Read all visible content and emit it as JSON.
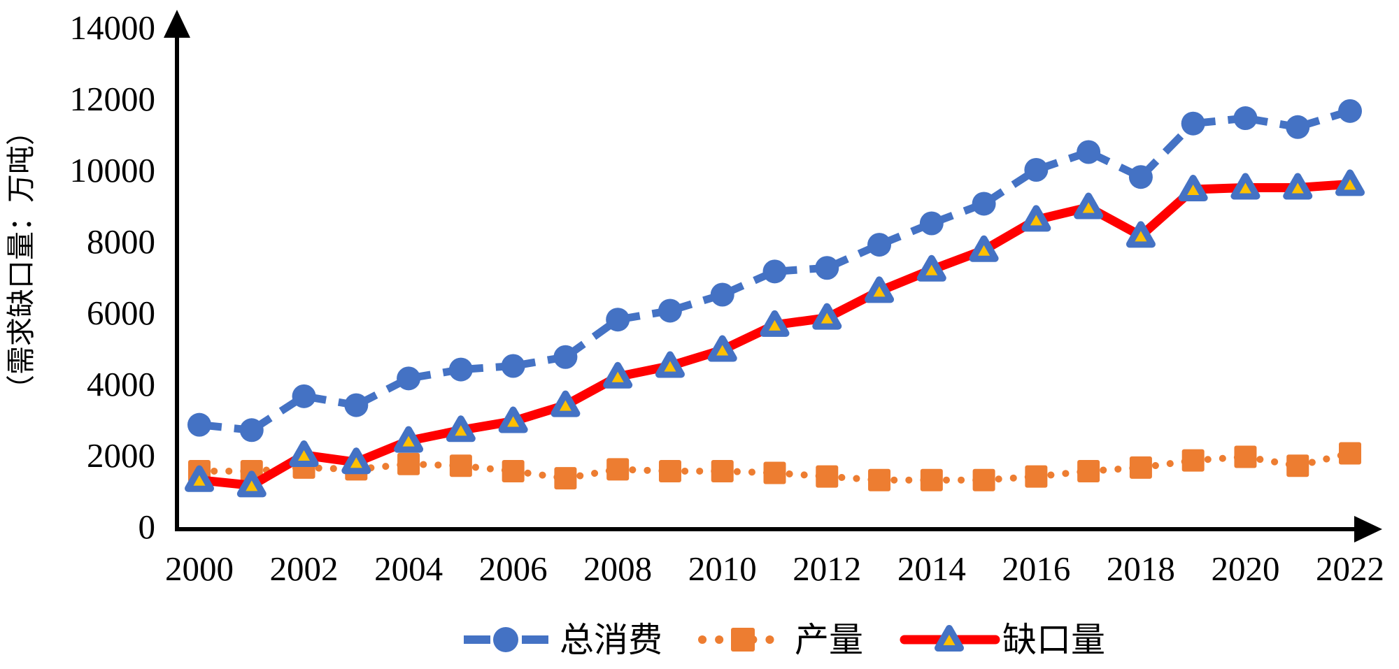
{
  "chart_data": {
    "type": "line",
    "title": "",
    "ylabel": "（需求缺口量：万吨）",
    "xlabel": "",
    "ylim": [
      0,
      14000
    ],
    "y_ticks": [
      0,
      2000,
      4000,
      6000,
      8000,
      10000,
      12000,
      14000
    ],
    "x": [
      2000,
      2001,
      2002,
      2003,
      2004,
      2005,
      2006,
      2007,
      2008,
      2009,
      2010,
      2011,
      2012,
      2013,
      2014,
      2015,
      2016,
      2017,
      2018,
      2019,
      2020,
      2021,
      2022
    ],
    "x_tick_labels": [
      "2000",
      "2002",
      "2004",
      "2006",
      "2008",
      "2010",
      "2012",
      "2014",
      "2016",
      "2018",
      "2020",
      "2022"
    ],
    "grid": false,
    "legend_position": "bottom-center",
    "axis_arrows": true,
    "series": [
      {
        "name": "总消费",
        "line_style": "dashed",
        "marker": "circle",
        "color": "#4472C4",
        "values": [
          2850,
          2700,
          3650,
          3400,
          4150,
          4400,
          4500,
          4750,
          5800,
          6050,
          6500,
          7150,
          7250,
          7900,
          8500,
          9050,
          10000,
          10500,
          9800,
          11300,
          11450,
          11200,
          11650
        ]
      },
      {
        "name": "产量",
        "line_style": "dotted",
        "marker": "square",
        "color": "#ED7D31",
        "values": [
          1550,
          1550,
          1650,
          1600,
          1750,
          1700,
          1550,
          1350,
          1600,
          1550,
          1550,
          1500,
          1400,
          1300,
          1300,
          1300,
          1400,
          1550,
          1650,
          1850,
          1950,
          1700,
          2050
        ]
      },
      {
        "name": "缺口量",
        "line_style": "solid",
        "marker": "triangle",
        "color": "#FF0000",
        "marker_fill": "#4472C4",
        "marker_inner": "#FFC000",
        "values": [
          1300,
          1150,
          2000,
          1800,
          2400,
          2700,
          2950,
          3400,
          4200,
          4500,
          4950,
          5650,
          5850,
          6600,
          7200,
          7750,
          8600,
          8950,
          8150,
          9450,
          9500,
          9500,
          9600
        ]
      }
    ],
    "colors": {
      "axis": "#000000",
      "background": "#FFFFFF"
    }
  }
}
